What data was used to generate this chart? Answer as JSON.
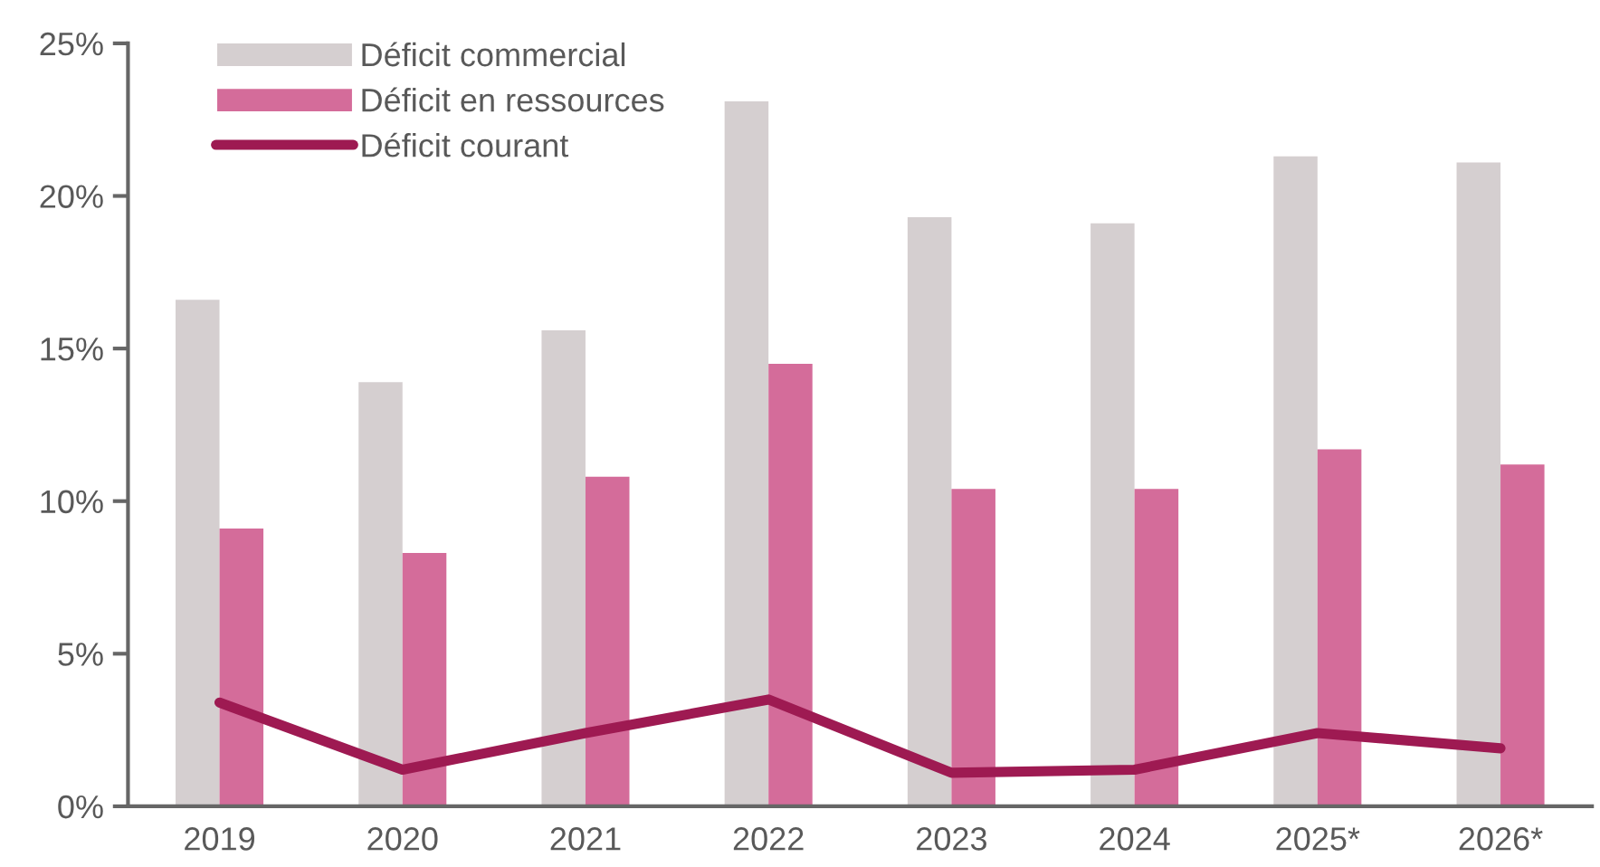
{
  "chart_data": {
    "type": "bar",
    "categories": [
      "2019",
      "2020",
      "2021",
      "2022",
      "2023",
      "2024",
      "2025*",
      "2026*"
    ],
    "series": [
      {
        "name": "Déficit commercial",
        "color": "#d5cfd0",
        "values": [
          16.6,
          13.9,
          15.6,
          23.1,
          19.3,
          19.1,
          21.3,
          21.1
        ]
      },
      {
        "name": "Déficit en ressources",
        "color": "#d46c9a",
        "values": [
          9.1,
          8.3,
          10.8,
          14.5,
          10.4,
          10.4,
          11.7,
          11.2
        ]
      },
      {
        "name": "Déficit courant",
        "color": "#9e1a52",
        "type": "line",
        "values": [
          3.4,
          1.2,
          2.4,
          3.5,
          1.1,
          1.2,
          2.4,
          1.9
        ]
      }
    ],
    "ylim": [
      0,
      25
    ],
    "yticks": [
      {
        "value": 0,
        "label": "0%"
      },
      {
        "value": 5,
        "label": "5%"
      },
      {
        "value": 10,
        "label": "10%"
      },
      {
        "value": 15,
        "label": "15%"
      },
      {
        "value": 20,
        "label": "20%"
      },
      {
        "value": 25,
        "label": "25%"
      }
    ],
    "grid": false,
    "legend": "top left",
    "marker": "none",
    "line_style": "solid"
  }
}
